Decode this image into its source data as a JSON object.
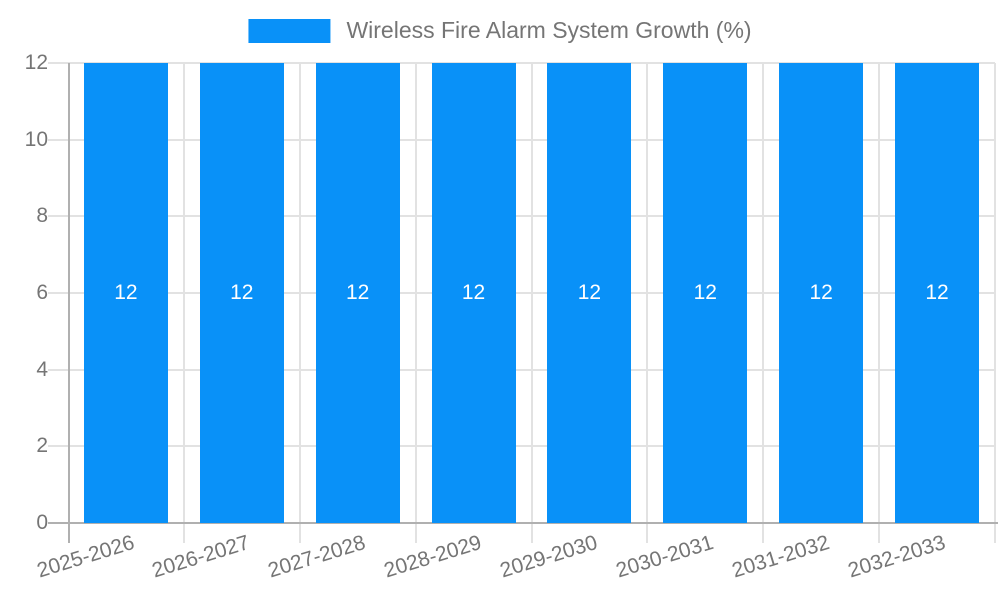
{
  "legend": {
    "label": "Wireless Fire Alarm System Growth (%)",
    "swatch_color": "#0991f8"
  },
  "chart_data": {
    "type": "bar",
    "title": "Wireless Fire Alarm System Growth (%)",
    "categories": [
      "2025-2026",
      "2026-2027",
      "2027-2028",
      "2028-2029",
      "2029-2030",
      "2030-2031",
      "2031-2032",
      "2032-2033"
    ],
    "values": [
      12,
      12,
      12,
      12,
      12,
      12,
      12,
      12
    ],
    "bar_value_labels": [
      "12",
      "12",
      "12",
      "12",
      "12",
      "12",
      "12",
      "12"
    ],
    "xlabel": "",
    "ylabel": "",
    "ylim": [
      0,
      12
    ],
    "yticks": [
      0,
      2,
      4,
      6,
      8,
      10,
      12
    ],
    "grid": true,
    "legend_position": "top",
    "bar_color": "#0991f8",
    "bar_label_color": "#ffffff",
    "axis_text_color": "#757575",
    "gridline_color": "#e2e2e2",
    "axis_line_color": "#b0b0b0"
  }
}
